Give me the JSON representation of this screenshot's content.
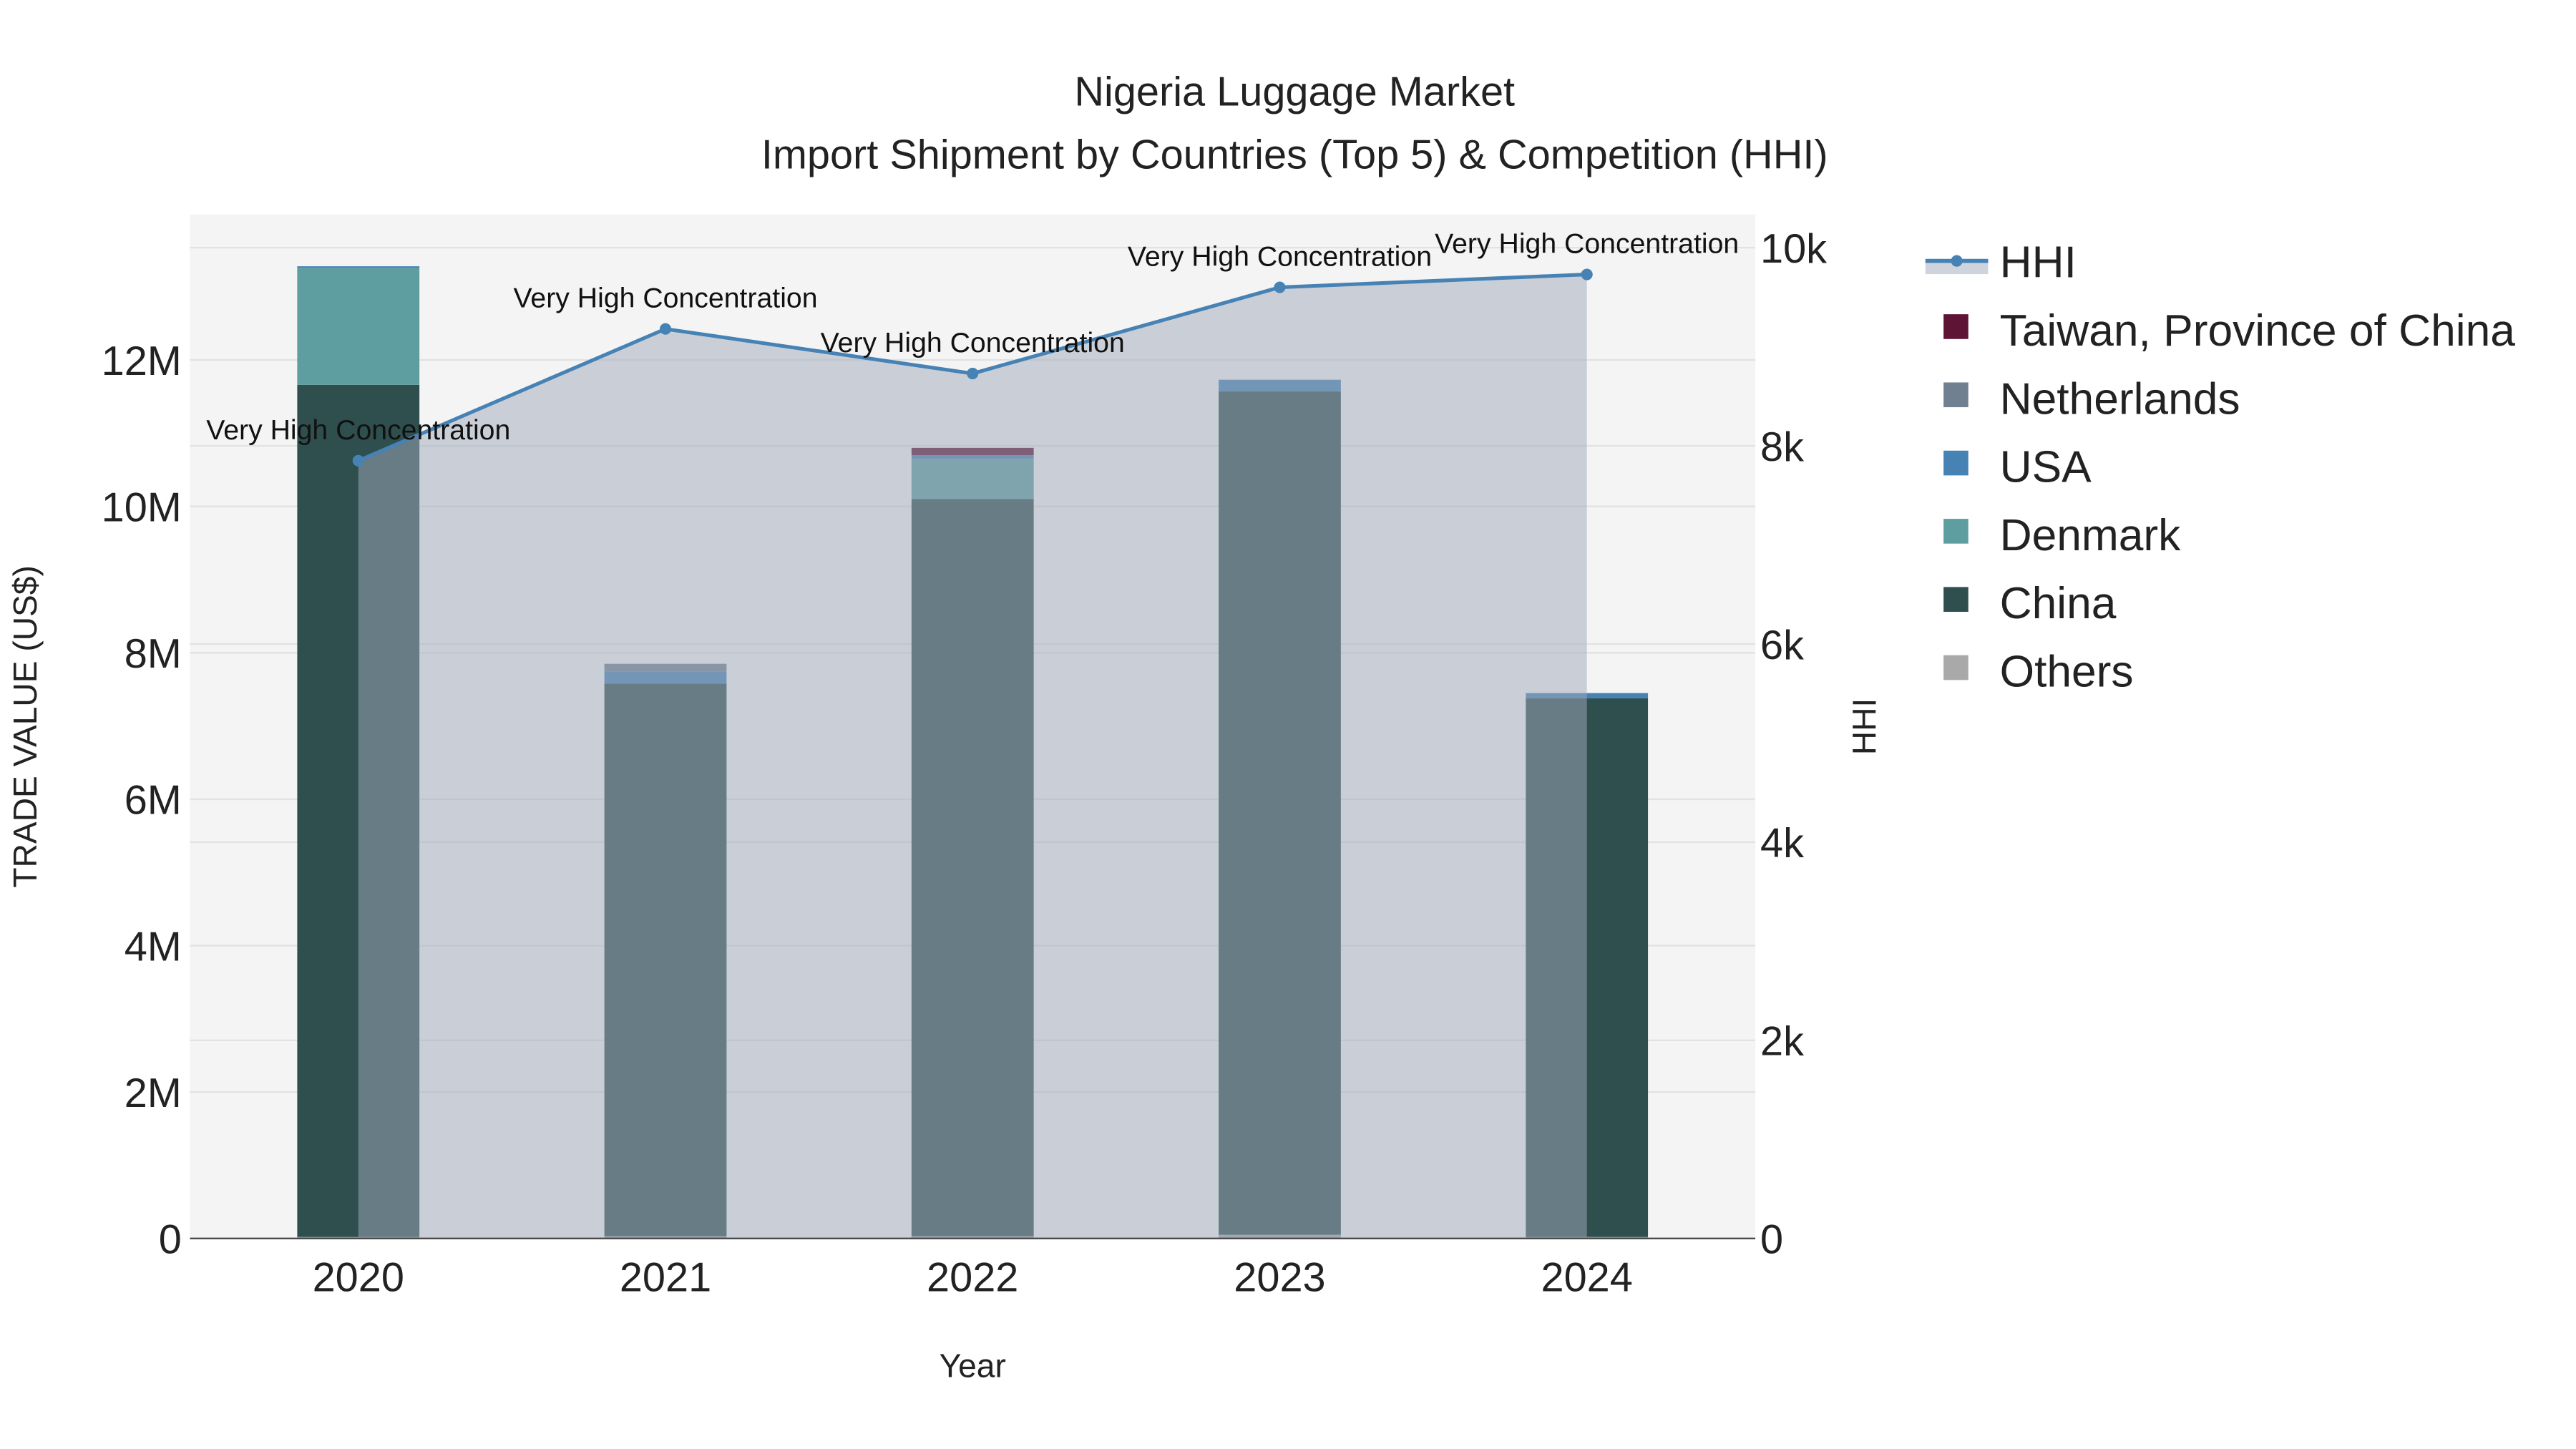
{
  "chart_data": {
    "type": "bar",
    "title": "Nigeria Luggage Market",
    "subtitle": "Import Shipment by Countries (Top 5) & Competition (HHI)",
    "xlabel": "Year",
    "ylabel": "TRADE VALUE (US$)",
    "y2label": "HHI",
    "categories": [
      "2020",
      "2021",
      "2022",
      "2023",
      "2024"
    ],
    "ylim": [
      0,
      14000000
    ],
    "y2lim": [
      0,
      10300
    ],
    "yticks": [
      {
        "v": 0,
        "label": "0"
      },
      {
        "v": 2000000,
        "label": "2M"
      },
      {
        "v": 4000000,
        "label": "4M"
      },
      {
        "v": 6000000,
        "label": "6M"
      },
      {
        "v": 8000000,
        "label": "8M"
      },
      {
        "v": 10000000,
        "label": "10M"
      },
      {
        "v": 12000000,
        "label": "12M"
      }
    ],
    "y2ticks": [
      {
        "v": 0,
        "label": "0"
      },
      {
        "v": 2000,
        "label": "2k"
      },
      {
        "v": 4000,
        "label": "4k"
      },
      {
        "v": 6000,
        "label": "6k"
      },
      {
        "v": 8000,
        "label": "8k"
      },
      {
        "v": 10000,
        "label": "10k"
      }
    ],
    "grid": true,
    "legend_placement": "right",
    "series": [
      {
        "name": "Others",
        "color": "#a9a9a9",
        "values": [
          20000,
          30000,
          30000,
          50000,
          20000
        ]
      },
      {
        "name": "China",
        "color": "#2f4f4f",
        "values": [
          11640000,
          7550000,
          10070000,
          11520000,
          7360000
        ]
      },
      {
        "name": "Denmark",
        "color": "#5f9ea0",
        "values": [
          1600000,
          0,
          550000,
          0,
          0
        ]
      },
      {
        "name": "USA",
        "color": "#4682b4",
        "values": [
          20000,
          160000,
          50000,
          160000,
          70000
        ]
      },
      {
        "name": "Netherlands",
        "color": "#708090",
        "values": [
          0,
          110000,
          0,
          0,
          0
        ]
      },
      {
        "name": "Taiwan, Province of China",
        "color": "#5e1434",
        "values": [
          0,
          0,
          100000,
          0,
          0
        ]
      }
    ],
    "hhi": {
      "name": "HHI",
      "color": "#4682b4",
      "fill": "rgba(160,170,185,0.5)",
      "values": [
        7850,
        9180,
        8730,
        9600,
        9730
      ],
      "annotations": [
        "Very High Concentration",
        "Very High Concentration",
        "Very High Concentration",
        "Very High Concentration",
        "Very High Concentration"
      ]
    },
    "legend_order": [
      "HHI",
      "Taiwan, Province of China",
      "Netherlands",
      "USA",
      "Denmark",
      "China",
      "Others"
    ]
  }
}
